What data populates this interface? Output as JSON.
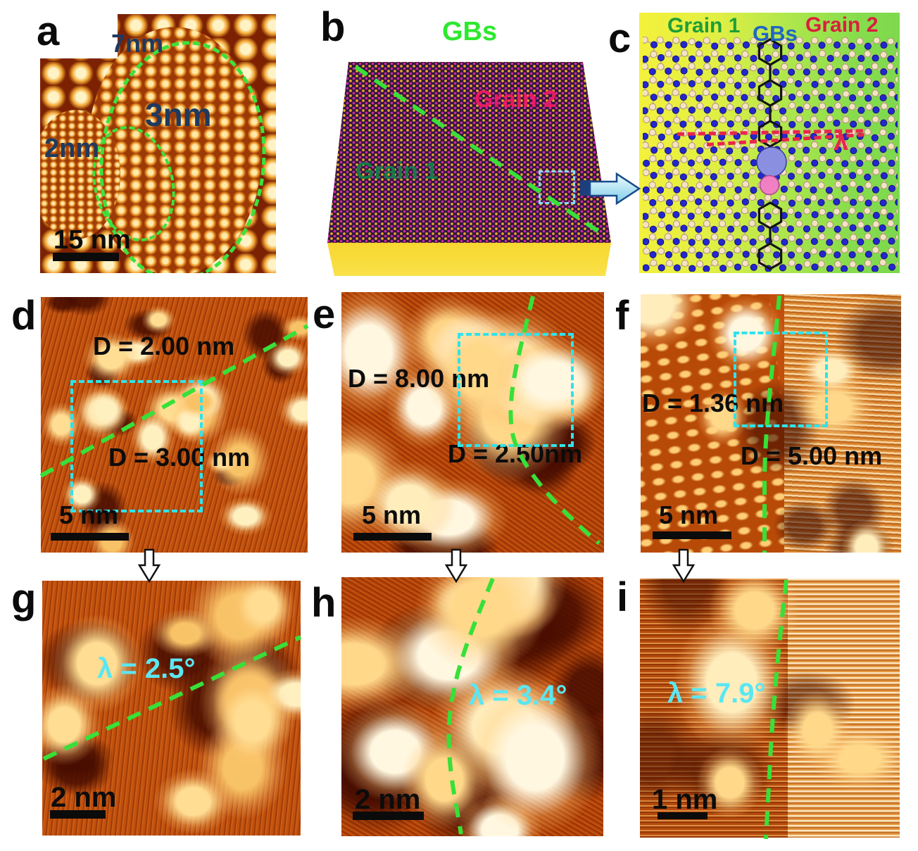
{
  "panels": {
    "a": {
      "label": "a",
      "region_labels": [
        "7nm",
        "3nm",
        "2nm"
      ],
      "scale_bar": "15 nm"
    },
    "b": {
      "label": "b",
      "title": "GBs",
      "grain1": "Grain 1",
      "grain2": "Grain 2"
    },
    "c": {
      "label": "c",
      "grain1": "Grain 1",
      "gbs": "GBs",
      "grain2": "Grain 2",
      "angle_symbol": "λ"
    },
    "d": {
      "label": "d",
      "domain_top": "D = 2.00 nm",
      "domain_bottom": "D = 3.00 nm",
      "scale_bar": "5 nm"
    },
    "e": {
      "label": "e",
      "domain_left": "D = 8.00 nm",
      "domain_right": "D = 2.50nm",
      "scale_bar": "5 nm"
    },
    "f": {
      "label": "f",
      "domain_left": "D = 1.36 nm",
      "domain_right": "D = 5.00 nm",
      "scale_bar": "5 nm"
    },
    "g": {
      "label": "g",
      "angle": "λ = 2.5°",
      "scale_bar": "2 nm"
    },
    "h": {
      "label": "h",
      "angle": "λ = 3.4°",
      "scale_bar": "2 nm"
    },
    "i": {
      "label": "i",
      "angle": "λ = 7.9°",
      "scale_bar": "1 nm"
    }
  },
  "colors": {
    "boundary_green": "#38e038",
    "cyan_box": "#2fe3ea",
    "angle_cyan": "#5ce6f2",
    "grain1_b": "#157a48",
    "grain2_b": "#ea1b60",
    "gbs_b": "#2ee82e",
    "grain1_c": "#1e9e38",
    "gbs_c": "#2166c4",
    "grain2_c": "#da1e3e",
    "red_dash": "#e8274a",
    "size_label_navy": "#1e3a5f"
  }
}
